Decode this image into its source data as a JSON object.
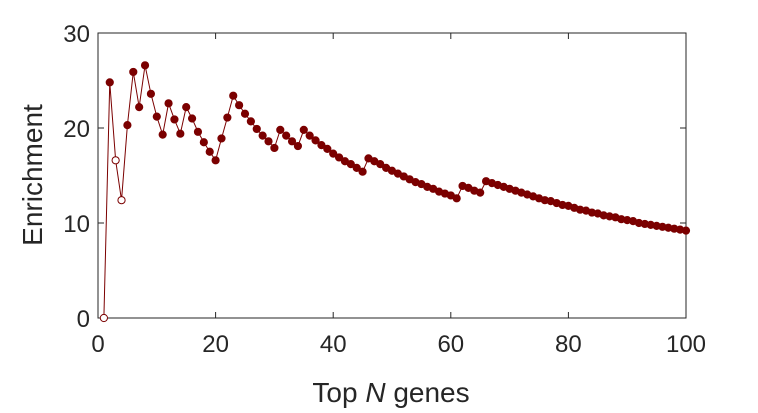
{
  "chart_data": {
    "type": "line",
    "xlabel_prefix": "Top ",
    "xlabel_var": "N",
    "xlabel_suffix": " genes",
    "ylabel": "Enrichment",
    "xlim": [
      0,
      100
    ],
    "ylim": [
      0,
      30
    ],
    "xticks": [
      0,
      20,
      40,
      60,
      80,
      100
    ],
    "yticks": [
      0,
      10,
      20,
      30
    ],
    "grid": false,
    "colors": {
      "series": "#7b0000",
      "axis": "#262626"
    },
    "series": [
      {
        "x": [
          1,
          2,
          3,
          4,
          5,
          6,
          7,
          8,
          9,
          10,
          11,
          12,
          13,
          14,
          15,
          16,
          17,
          18,
          19,
          20,
          21,
          22,
          23,
          24,
          25,
          26,
          27,
          28,
          29,
          30,
          31,
          32,
          33,
          34,
          35,
          36,
          37,
          38,
          39,
          40,
          41,
          42,
          43,
          44,
          45,
          46,
          47,
          48,
          49,
          50,
          51,
          52,
          53,
          54,
          55,
          56,
          57,
          58,
          59,
          60,
          61,
          62,
          63,
          64,
          65,
          66,
          67,
          68,
          69,
          70,
          71,
          72,
          73,
          74,
          75,
          76,
          77,
          78,
          79,
          80,
          81,
          82,
          83,
          84,
          85,
          86,
          87,
          88,
          89,
          90,
          91,
          92,
          93,
          94,
          95,
          96,
          97,
          98,
          99,
          100
        ],
        "y": [
          0,
          24.8,
          16.6,
          12.4,
          20.3,
          25.9,
          22.2,
          26.6,
          23.6,
          21.2,
          19.3,
          22.6,
          20.9,
          19.4,
          22.2,
          21.0,
          19.6,
          18.5,
          17.5,
          16.6,
          18.9,
          21.1,
          23.4,
          22.4,
          21.5,
          20.7,
          19.9,
          19.2,
          18.6,
          17.9,
          19.8,
          19.2,
          18.6,
          18.1,
          19.8,
          19.2,
          18.7,
          18.2,
          17.8,
          17.3,
          16.9,
          16.5,
          16.2,
          15.8,
          15.4,
          16.8,
          16.5,
          16.2,
          15.8,
          15.5,
          15.2,
          14.9,
          14.6,
          14.3,
          14.1,
          13.8,
          13.6,
          13.3,
          13.1,
          12.9,
          12.6,
          13.9,
          13.7,
          13.4,
          13.2,
          14.4,
          14.2,
          14.0,
          13.8,
          13.6,
          13.4,
          13.2,
          13.0,
          12.8,
          12.6,
          12.4,
          12.3,
          12.1,
          11.9,
          11.8,
          11.6,
          11.4,
          11.3,
          11.1,
          11.0,
          10.8,
          10.7,
          10.6,
          10.4,
          10.3,
          10.2,
          10.0,
          9.9,
          9.8,
          9.7,
          9.6,
          9.5,
          9.4,
          9.3,
          9.2
        ],
        "open_markers_x": [
          1,
          3,
          4
        ]
      }
    ]
  }
}
